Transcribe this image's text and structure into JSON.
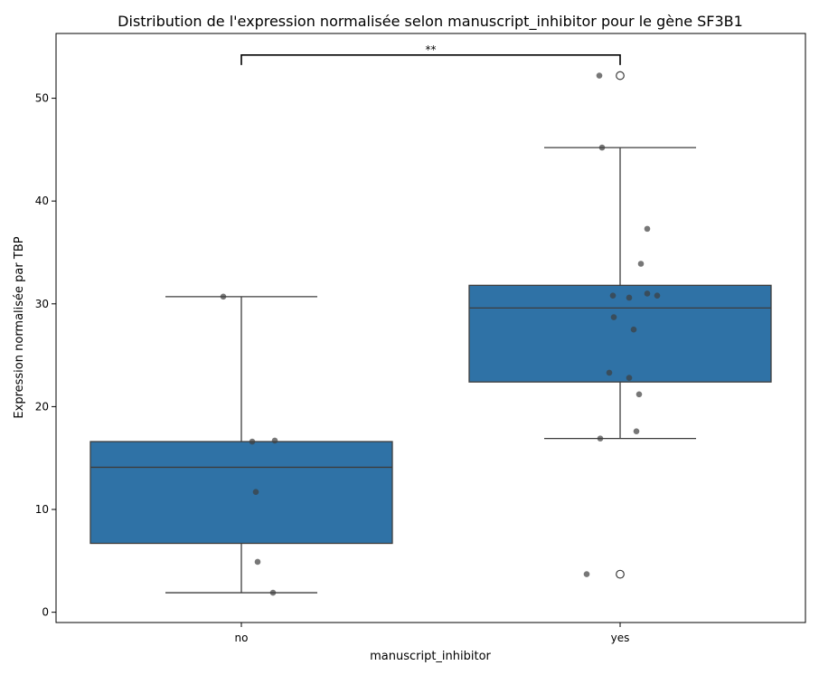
{
  "chart_data": {
    "type": "box",
    "title": "Distribution de l'expression normalisée selon manuscript_inhibitor pour le gène SF3B1",
    "xlabel": "manuscript_inhibitor",
    "ylabel": "Expression normalisée par TBP",
    "categories": [
      "no",
      "yes"
    ],
    "ylim": [
      -1,
      56.3
    ],
    "yticks": [
      0,
      10,
      20,
      30,
      40,
      50
    ],
    "box_color": "#2f72a6",
    "line_color": "#3d3d3d",
    "point_color": "#3d3d3d",
    "grid": false,
    "boxes": [
      {
        "category": "no",
        "q1": 6.7,
        "median": 14.1,
        "q3": 16.6,
        "whisker_low": 1.9,
        "whisker_high": 30.7,
        "outliers": []
      },
      {
        "category": "yes",
        "q1": 22.4,
        "median": 29.6,
        "q3": 31.8,
        "whisker_low": 16.9,
        "whisker_high": 45.2,
        "outliers": [
          52.2,
          3.7
        ]
      }
    ],
    "points": [
      {
        "category": "no",
        "values": [
          30.7,
          16.6,
          16.7,
          11.7,
          4.9,
          1.9
        ]
      },
      {
        "category": "yes",
        "values": [
          52.2,
          45.2,
          37.3,
          33.9,
          30.8,
          30.6,
          31.0,
          30.8,
          28.7,
          27.5,
          23.3,
          22.8,
          21.2,
          17.6,
          16.9,
          3.7
        ]
      }
    ],
    "significance": {
      "label": "**",
      "between": [
        "no",
        "yes"
      ],
      "y": 54.2
    }
  }
}
